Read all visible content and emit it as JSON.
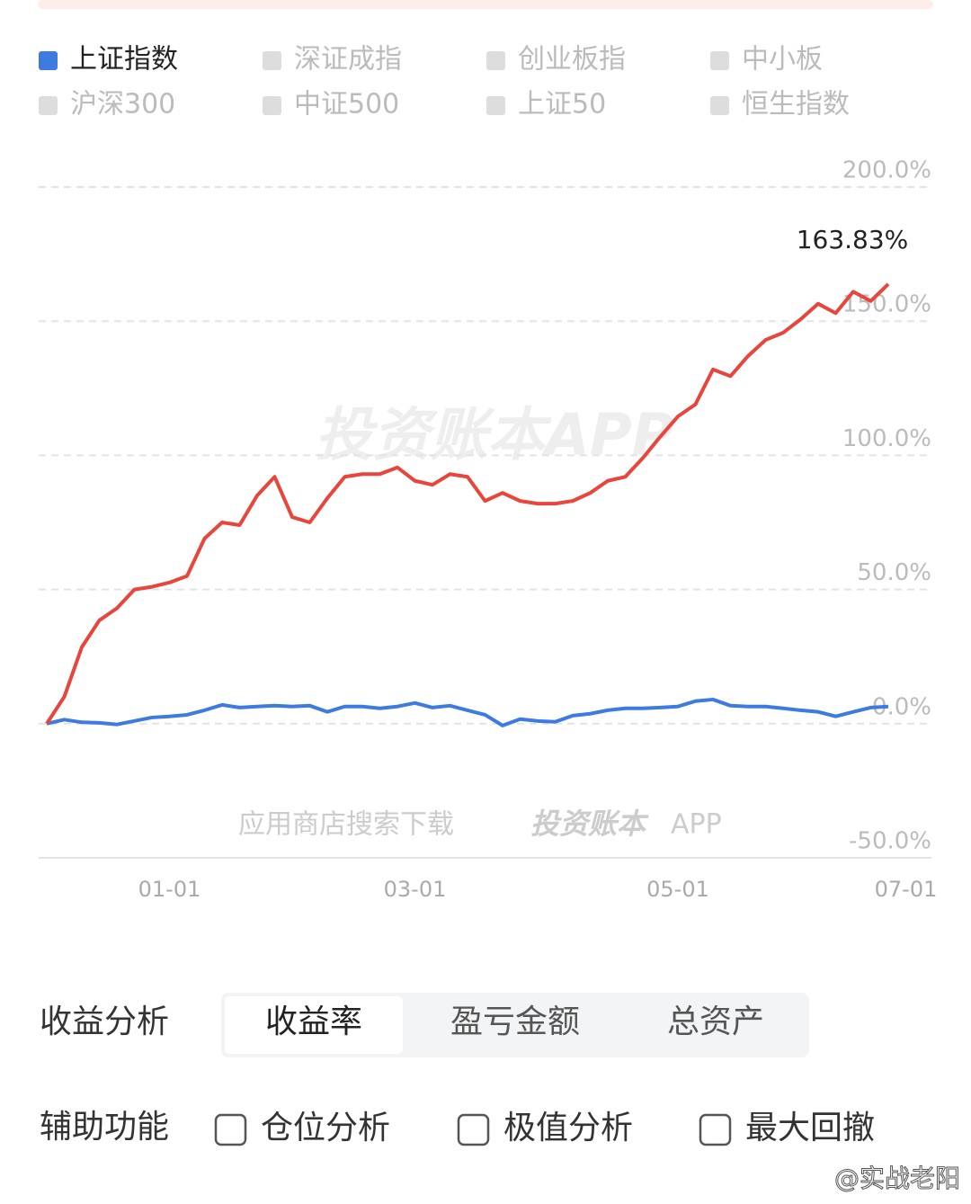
{
  "chart_data": {
    "type": "line",
    "categories": [
      null,
      null,
      null,
      null,
      null,
      null,
      null,
      "01-01",
      null,
      null,
      null,
      null,
      null,
      null,
      null,
      null,
      null,
      null,
      null,
      null,
      null,
      "03-01",
      null,
      null,
      null,
      null,
      null,
      null,
      null,
      null,
      null,
      null,
      null,
      null,
      null,
      null,
      "05-01",
      null,
      null,
      null,
      null,
      null,
      null,
      null,
      null,
      null,
      null,
      null,
      null,
      "07-01"
    ],
    "series": [
      {
        "color": "#e8453c",
        "values": [
          0,
          10,
          28.5,
          38.5,
          43,
          50,
          51,
          52.6,
          55,
          69,
          75,
          74,
          85,
          92,
          77,
          75,
          84,
          92,
          93,
          93,
          95.5,
          90.5,
          89,
          93,
          92,
          83,
          86,
          83,
          82,
          82,
          83,
          86,
          90.5,
          92,
          99,
          107,
          114.5,
          119,
          132,
          129.5,
          137,
          143,
          145.7,
          150.7,
          156.5,
          153,
          161,
          157.5,
          163.83,
          null
        ]
      },
      {
        "name": "上证指数",
        "color": "#3d7be0",
        "values": [
          0,
          1.5,
          0.5,
          0.3,
          -0.3,
          1,
          2.3,
          2.7,
          3.3,
          5,
          7,
          6,
          6.4,
          6.7,
          6.4,
          6.7,
          4.4,
          6.4,
          6.4,
          5.7,
          6.4,
          7.7,
          6,
          6.7,
          5,
          3.3,
          -0.7,
          1.7,
          1,
          0.7,
          3,
          3.7,
          5,
          5.7,
          5.7,
          6,
          6.4,
          8.4,
          9,
          6.7,
          6.4,
          6.4,
          5.7,
          5,
          4.4,
          2.7,
          4.4,
          6,
          6.4,
          null
        ]
      }
    ],
    "other_indices": [
      "深证成指",
      "创业板指",
      "中小板",
      "沪深300",
      "中证500",
      "上证50",
      "恒生指数"
    ],
    "inactive_color": "#dddddd",
    "annotation": "163.83%",
    "ylim": [
      -50,
      200
    ],
    "yticks": [
      {
        "value": -50,
        "label": "-50.0%"
      },
      {
        "value": 0,
        "label": "0.0%"
      },
      {
        "value": 50,
        "label": "50.0%"
      },
      {
        "value": 100,
        "label": "100.0%"
      },
      {
        "value": 150,
        "label": "150.0%"
      },
      {
        "value": 200,
        "label": "200.0%"
      }
    ],
    "grid": true
  },
  "watermarks": {
    "main": "投资账本APP",
    "download": "应用商店搜索下载",
    "brand": "投资账本",
    "app": "APP",
    "weibo": "@实战老阳"
  },
  "controls": {
    "analysis_label": "收益分析",
    "tabs": [
      "收益率",
      "盈亏金额",
      "总资产"
    ],
    "active_tab": 0,
    "aux_label": "辅助功能",
    "checkboxes": [
      "仓位分析",
      "极值分析",
      "最大回撤"
    ]
  }
}
